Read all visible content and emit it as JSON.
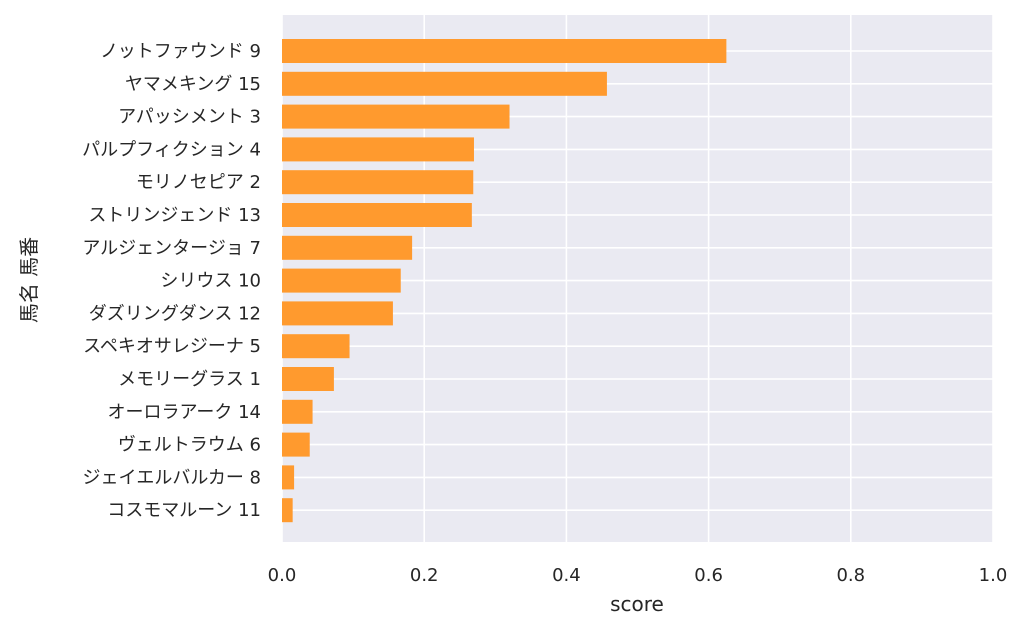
{
  "chart_data": {
    "type": "bar",
    "orientation": "horizontal",
    "title": "",
    "xlabel": "score",
    "ylabel": "馬名 馬番",
    "xlim": [
      0.0,
      1.0
    ],
    "x_ticks": [
      "0.0",
      "0.2",
      "0.4",
      "0.6",
      "0.8",
      "1.0"
    ],
    "grid": true,
    "colors": {
      "bar": "#ff9a2e",
      "background": "#eaeaf2",
      "grid": "#ffffff"
    },
    "categories": [
      "ノットファウンド 9",
      "ヤマメキング 15",
      "アパッシメント 3",
      "パルプフィクション 4",
      "モリノセピア 2",
      "ストリンジェンド 13",
      "アルジェンタージョ 7",
      "シリウス 10",
      "ダズリングダンス 12",
      "スペキオサレジーナ 5",
      "メモリーグラス 1",
      "オーロラアーク 14",
      "ヴェルトラウム 6",
      "ジェイエルバルカー 8",
      "コスモマルーン 11"
    ],
    "values": [
      0.625,
      0.457,
      0.32,
      0.27,
      0.269,
      0.267,
      0.183,
      0.167,
      0.156,
      0.095,
      0.073,
      0.043,
      0.039,
      0.017,
      0.015
    ]
  }
}
